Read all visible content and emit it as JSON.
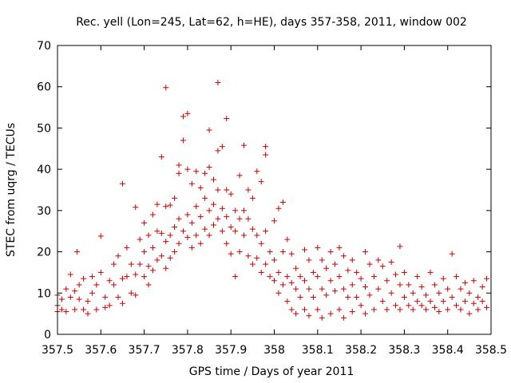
{
  "chart_data": {
    "type": "scatter",
    "title": "Rec. yell (Lon=245, Lat=62, h=HE), days 357-358, 2011, window 002",
    "xlabel": "GPS time / Days of year 2011",
    "ylabel": "STEC from uqrg / TECUs",
    "xlim": [
      357.5,
      358.5
    ],
    "ylim": [
      0,
      70
    ],
    "xticks": [
      357.5,
      357.6,
      357.7,
      357.8,
      357.9,
      358.0,
      358.1,
      358.2,
      358.3,
      358.4,
      358.5
    ],
    "xtick_labels": [
      "357.5",
      "357.6",
      "357.7",
      "357.8",
      "357.9",
      "358",
      "358.1",
      "358.2",
      "358.3",
      "358.4",
      "358.5"
    ],
    "yticks": [
      0,
      10,
      20,
      30,
      40,
      50,
      60,
      70
    ],
    "ytick_labels": [
      "0",
      "10",
      "20",
      "30",
      "40",
      "50",
      "60",
      "70"
    ],
    "marker": "+",
    "color": "#cc0000",
    "series": [
      {
        "name": "STEC",
        "points": [
          [
            357.5,
            9.5
          ],
          [
            357.5,
            7.0
          ],
          [
            357.5,
            5.5
          ],
          [
            357.51,
            8.5
          ],
          [
            357.51,
            6.0
          ],
          [
            357.52,
            11.0
          ],
          [
            357.52,
            5.5
          ],
          [
            357.53,
            9.0
          ],
          [
            357.53,
            14.5
          ],
          [
            357.54,
            10.5
          ],
          [
            357.54,
            6.0
          ],
          [
            357.545,
            20.0
          ],
          [
            357.55,
            12.0
          ],
          [
            357.55,
            8.5
          ],
          [
            357.56,
            6.0
          ],
          [
            357.56,
            13.5
          ],
          [
            357.57,
            8.0
          ],
          [
            357.57,
            5.0
          ],
          [
            357.58,
            14.0
          ],
          [
            357.58,
            10.0
          ],
          [
            357.59,
            12.0
          ],
          [
            357.59,
            6.0
          ],
          [
            357.6,
            23.8
          ],
          [
            357.6,
            15.0
          ],
          [
            357.61,
            9.0
          ],
          [
            357.61,
            6.5
          ],
          [
            357.62,
            13.0
          ],
          [
            357.62,
            7.0
          ],
          [
            357.63,
            17.0
          ],
          [
            357.63,
            12.0
          ],
          [
            357.64,
            19.0
          ],
          [
            357.64,
            9.0
          ],
          [
            357.65,
            36.5
          ],
          [
            357.65,
            13.5
          ],
          [
            357.65,
            7.5
          ],
          [
            357.66,
            21.0
          ],
          [
            357.66,
            14.0
          ],
          [
            357.67,
            10.0
          ],
          [
            357.67,
            17.0
          ],
          [
            357.68,
            30.8
          ],
          [
            357.68,
            14.5
          ],
          [
            357.68,
            9.5
          ],
          [
            357.69,
            23.0
          ],
          [
            357.69,
            17.0
          ],
          [
            357.7,
            27.0
          ],
          [
            357.7,
            20.0
          ],
          [
            357.7,
            14.0
          ],
          [
            357.71,
            24.0
          ],
          [
            357.71,
            16.5
          ],
          [
            357.71,
            12.0
          ],
          [
            357.72,
            29.0
          ],
          [
            357.72,
            21.0
          ],
          [
            357.72,
            15.5
          ],
          [
            357.73,
            31.5
          ],
          [
            357.73,
            25.0
          ],
          [
            357.73,
            18.0
          ],
          [
            357.74,
            43.0
          ],
          [
            357.74,
            24.5
          ],
          [
            357.74,
            19.0
          ],
          [
            357.75,
            59.8
          ],
          [
            357.75,
            31.0
          ],
          [
            357.75,
            22.5
          ],
          [
            357.75,
            16.0
          ],
          [
            357.76,
            31.3
          ],
          [
            357.76,
            24.0
          ],
          [
            357.76,
            18.5
          ],
          [
            357.77,
            33.0
          ],
          [
            357.77,
            26.0
          ],
          [
            357.77,
            20.0
          ],
          [
            357.78,
            41.0
          ],
          [
            357.78,
            39.0
          ],
          [
            357.78,
            28.0
          ],
          [
            357.78,
            22.0
          ],
          [
            357.79,
            52.8
          ],
          [
            357.79,
            47.0
          ],
          [
            357.79,
            25.0
          ],
          [
            357.8,
            53.5
          ],
          [
            357.8,
            40.0
          ],
          [
            357.8,
            29.0
          ],
          [
            357.8,
            23.5
          ],
          [
            357.81,
            36.5
          ],
          [
            357.81,
            27.0
          ],
          [
            357.81,
            21.0
          ],
          [
            357.82,
            39.5
          ],
          [
            357.82,
            31.0
          ],
          [
            357.82,
            24.0
          ],
          [
            357.83,
            35.5
          ],
          [
            357.83,
            28.5
          ],
          [
            357.83,
            22.0
          ],
          [
            357.84,
            39.0
          ],
          [
            357.84,
            33.0
          ],
          [
            357.84,
            25.5
          ],
          [
            357.85,
            49.5
          ],
          [
            357.85,
            40.5
          ],
          [
            357.85,
            30.0
          ],
          [
            357.85,
            24.0
          ],
          [
            357.86,
            37.5
          ],
          [
            357.86,
            31.5
          ],
          [
            357.86,
            26.5
          ],
          [
            357.87,
            61.0
          ],
          [
            357.87,
            44.5
          ],
          [
            357.87,
            35.0
          ],
          [
            357.87,
            28.0
          ],
          [
            357.88,
            45.5
          ],
          [
            357.88,
            30.5
          ],
          [
            357.88,
            25.0
          ],
          [
            357.89,
            52.3
          ],
          [
            357.89,
            35.0
          ],
          [
            357.89,
            28.5
          ],
          [
            357.89,
            22.0
          ],
          [
            357.9,
            34.0
          ],
          [
            357.9,
            26.0
          ],
          [
            357.9,
            19.5
          ],
          [
            357.91,
            30.0
          ],
          [
            357.91,
            25.0
          ],
          [
            357.91,
            14.0
          ],
          [
            357.92,
            38.5
          ],
          [
            357.92,
            28.0
          ],
          [
            357.92,
            20.0
          ],
          [
            357.93,
            45.8
          ],
          [
            357.93,
            30.0
          ],
          [
            357.93,
            24.0
          ],
          [
            357.94,
            35.0
          ],
          [
            357.94,
            28.0
          ],
          [
            357.94,
            19.0
          ],
          [
            357.95,
            33.0
          ],
          [
            357.95,
            25.5
          ],
          [
            357.95,
            17.0
          ],
          [
            357.96,
            39.5
          ],
          [
            357.96,
            24.0
          ],
          [
            357.96,
            18.5
          ],
          [
            357.97,
            37.0
          ],
          [
            357.97,
            22.0
          ],
          [
            357.97,
            15.0
          ],
          [
            357.98,
            45.5
          ],
          [
            357.98,
            43.5
          ],
          [
            357.98,
            25.0
          ],
          [
            357.98,
            17.0
          ],
          [
            357.99,
            20.0
          ],
          [
            357.99,
            14.0
          ],
          [
            358.0,
            27.5
          ],
          [
            358.0,
            18.0
          ],
          [
            358.0,
            13.0
          ],
          [
            358.01,
            30.5
          ],
          [
            358.01,
            15.0
          ],
          [
            358.01,
            10.0
          ],
          [
            358.02,
            32.0
          ],
          [
            358.02,
            20.0
          ],
          [
            358.02,
            12.0
          ],
          [
            358.03,
            23.0
          ],
          [
            358.03,
            14.0
          ],
          [
            358.03,
            8.0
          ],
          [
            358.04,
            19.5
          ],
          [
            358.04,
            12.5
          ],
          [
            358.04,
            6.0
          ],
          [
            358.05,
            16.0
          ],
          [
            358.05,
            11.0
          ],
          [
            358.05,
            5.0
          ],
          [
            358.06,
            14.0
          ],
          [
            358.06,
            9.0
          ],
          [
            358.07,
            20.5
          ],
          [
            358.07,
            13.0
          ],
          [
            358.07,
            6.0
          ],
          [
            358.08,
            18.0
          ],
          [
            358.08,
            11.0
          ],
          [
            358.08,
            4.5
          ],
          [
            358.09,
            15.0
          ],
          [
            358.09,
            9.0
          ],
          [
            358.1,
            21.0
          ],
          [
            358.1,
            14.0
          ],
          [
            358.1,
            6.0
          ],
          [
            358.11,
            18.0
          ],
          [
            358.11,
            11.0
          ],
          [
            358.11,
            4.0
          ],
          [
            358.12,
            16.0
          ],
          [
            358.12,
            9.5
          ],
          [
            358.13,
            20.0
          ],
          [
            358.13,
            13.0
          ],
          [
            358.13,
            5.0
          ],
          [
            358.14,
            17.0
          ],
          [
            358.14,
            10.5
          ],
          [
            358.15,
            21.0
          ],
          [
            358.15,
            14.0
          ],
          [
            358.15,
            6.0
          ],
          [
            358.16,
            19.0
          ],
          [
            358.16,
            11.0
          ],
          [
            358.16,
            4.0
          ],
          [
            358.17,
            15.5
          ],
          [
            358.17,
            9.0
          ],
          [
            358.18,
            18.0
          ],
          [
            358.18,
            12.0
          ],
          [
            358.18,
            5.5
          ],
          [
            358.19,
            15.0
          ],
          [
            358.19,
            9.0
          ],
          [
            358.2,
            13.5
          ],
          [
            358.2,
            7.0
          ],
          [
            358.21,
            20.0
          ],
          [
            358.21,
            11.5
          ],
          [
            358.21,
            5.0
          ],
          [
            358.22,
            17.0
          ],
          [
            358.22,
            9.5
          ],
          [
            358.23,
            14.0
          ],
          [
            358.23,
            6.0
          ],
          [
            358.24,
            18.0
          ],
          [
            358.24,
            11.0
          ],
          [
            358.25,
            16.5
          ],
          [
            358.25,
            8.0
          ],
          [
            358.26,
            13.0
          ],
          [
            358.26,
            6.0
          ],
          [
            358.27,
            17.5
          ],
          [
            358.27,
            10.0
          ],
          [
            358.28,
            14.5
          ],
          [
            358.28,
            7.0
          ],
          [
            358.29,
            21.3
          ],
          [
            358.29,
            12.0
          ],
          [
            358.29,
            6.0
          ],
          [
            358.3,
            15.0
          ],
          [
            358.3,
            9.0
          ],
          [
            358.31,
            12.0
          ],
          [
            358.31,
            7.0
          ],
          [
            358.32,
            10.0
          ],
          [
            358.32,
            6.0
          ],
          [
            358.33,
            14.0
          ],
          [
            358.33,
            8.0
          ],
          [
            358.34,
            11.5
          ],
          [
            358.34,
            7.0
          ],
          [
            358.35,
            9.5
          ],
          [
            358.35,
            6.0
          ],
          [
            358.36,
            15.0
          ],
          [
            358.36,
            8.0
          ],
          [
            358.37,
            12.0
          ],
          [
            358.37,
            6.5
          ],
          [
            358.38,
            10.0
          ],
          [
            358.38,
            5.5
          ],
          [
            358.39,
            13.5
          ],
          [
            358.39,
            8.0
          ],
          [
            358.4,
            11.0
          ],
          [
            358.4,
            6.0
          ],
          [
            358.41,
            19.5
          ],
          [
            358.41,
            9.0
          ],
          [
            358.42,
            14.0
          ],
          [
            358.42,
            7.0
          ],
          [
            358.43,
            11.0
          ],
          [
            358.43,
            6.0
          ],
          [
            358.44,
            12.5
          ],
          [
            358.44,
            8.0
          ],
          [
            358.45,
            10.0
          ],
          [
            358.45,
            5.0
          ],
          [
            358.46,
            13.0
          ],
          [
            358.46,
            7.5
          ],
          [
            358.47,
            9.0
          ],
          [
            358.47,
            6.0
          ],
          [
            358.48,
            11.5
          ],
          [
            358.48,
            8.0
          ],
          [
            358.49,
            13.5
          ],
          [
            358.49,
            6.5
          ]
        ]
      }
    ]
  }
}
